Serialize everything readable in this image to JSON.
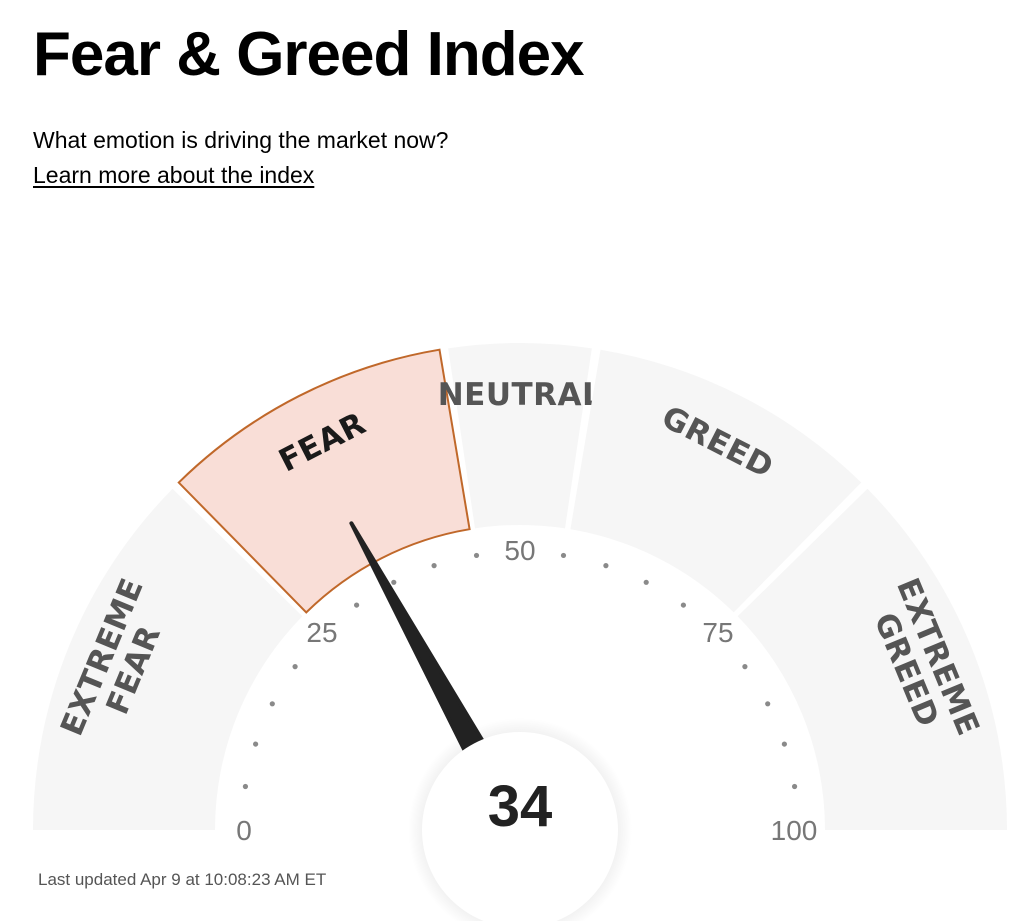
{
  "header": {
    "title": "Fear & Greed Index",
    "subtitle": "What emotion is driving the market now?",
    "learn_more_label": "Learn more about the index"
  },
  "gauge": {
    "value": 34,
    "min": 0,
    "max": 100,
    "active_segment": "fear",
    "segments": [
      {
        "key": "extreme-fear",
        "lines": [
          "EXTREME",
          "FEAR"
        ],
        "from": 0,
        "to": 25
      },
      {
        "key": "fear",
        "lines": [
          "FEAR"
        ],
        "from": 25,
        "to": 45
      },
      {
        "key": "neutral",
        "lines": [
          "NEUTRAL"
        ],
        "from": 45,
        "to": 55
      },
      {
        "key": "greed",
        "lines": [
          "GREED"
        ],
        "from": 55,
        "to": 75
      },
      {
        "key": "extreme-greed",
        "lines": [
          "EXTREME",
          "GREED"
        ],
        "from": 75,
        "to": 100
      }
    ],
    "tick_labels": [
      "0",
      "25",
      "50",
      "75",
      "100"
    ],
    "colors": {
      "segment_fill": "#f6f6f6",
      "active_fill": "#f9ded7",
      "active_stroke": "#c0682a",
      "label": "#555555",
      "active_label": "#1a1a1a",
      "needle": "#222222",
      "scale_text": "#777777"
    }
  },
  "footer": {
    "last_updated": "Last updated Apr 9 at 10:08:23 AM ET"
  }
}
